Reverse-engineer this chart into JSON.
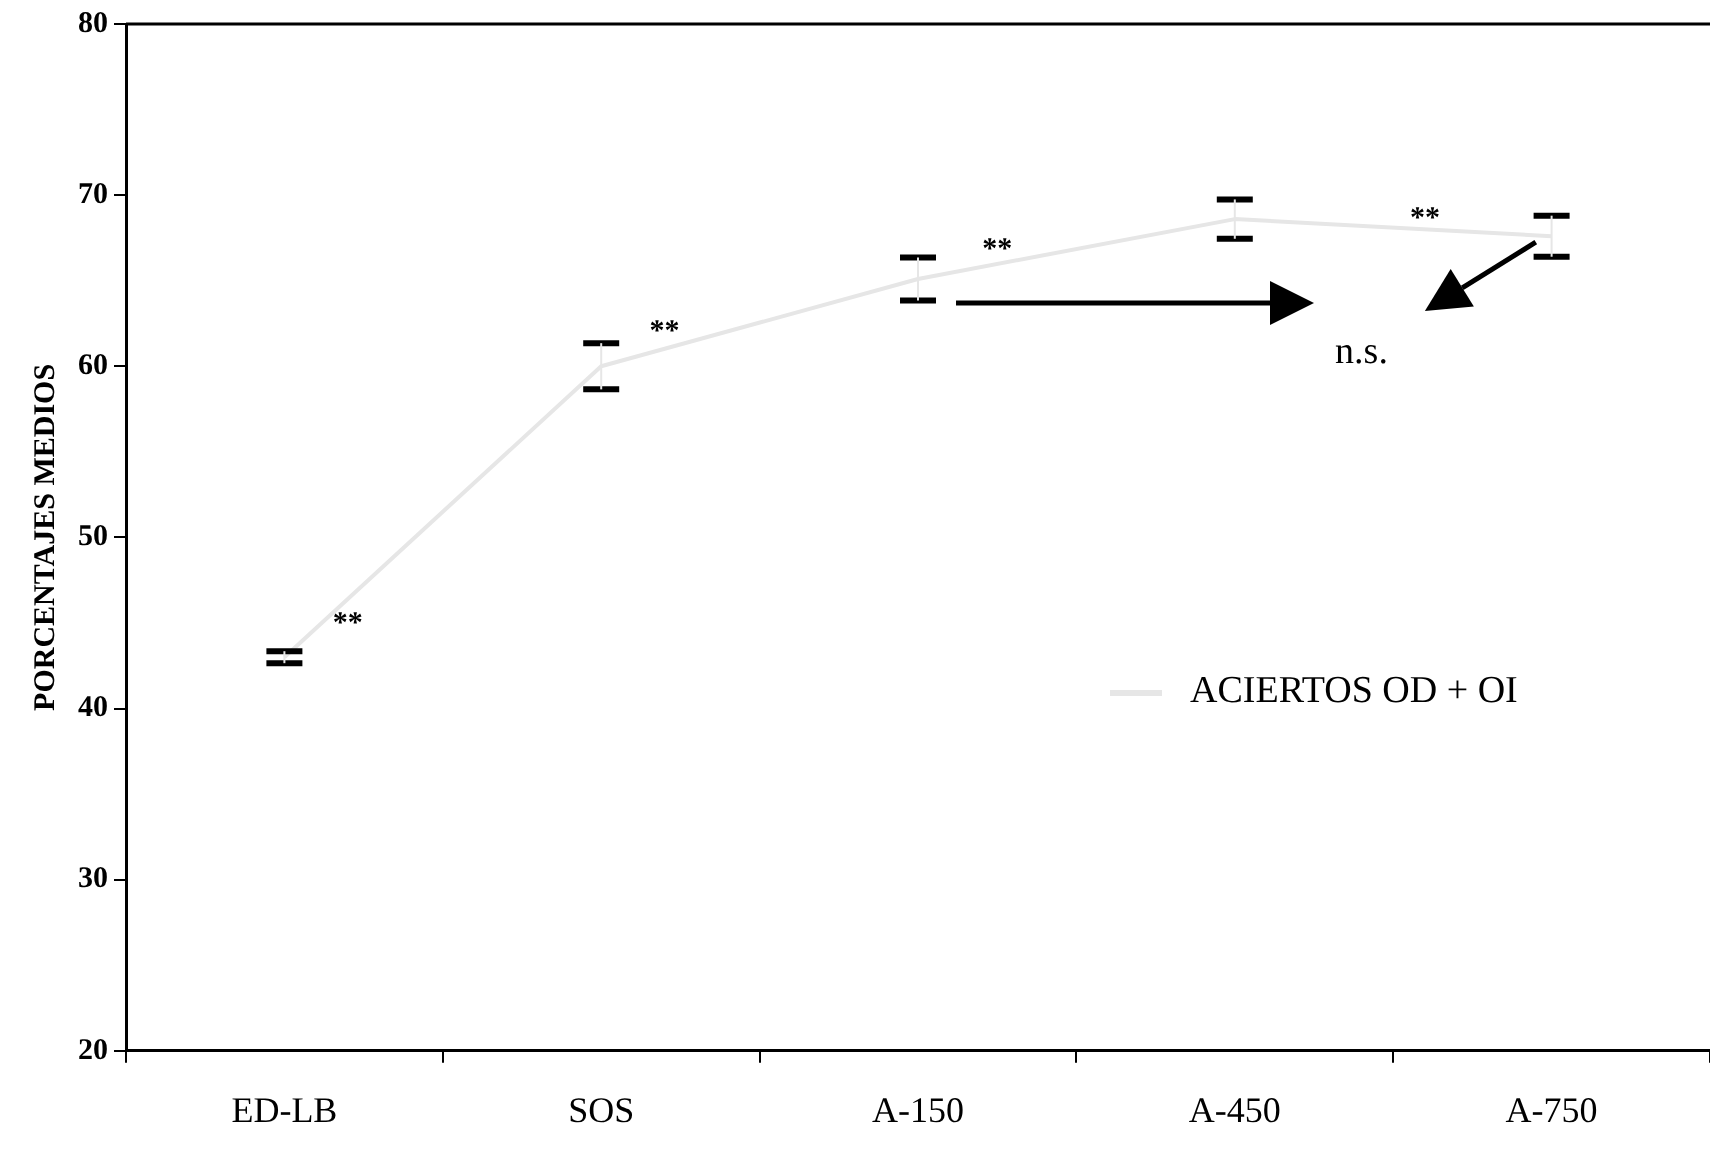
{
  "chart_data": {
    "type": "line",
    "ylabel": "PORCENTAJES MEDIOS",
    "categories": [
      "ED-LB",
      "SOS",
      "A-150",
      "A-450",
      "A-750"
    ],
    "series": [
      {
        "name": "ACIERTOS OD + OI",
        "color": "#e6e6e6",
        "values": [
          43.0,
          60.0,
          65.1,
          68.6,
          67.6
        ],
        "errors": [
          0.35,
          1.35,
          1.25,
          1.15,
          1.2
        ]
      }
    ],
    "ylim": [
      20,
      80
    ],
    "yticks": [
      20,
      30,
      40,
      50,
      60,
      70,
      80
    ],
    "grid": false,
    "legend": "bottom right",
    "marker": "none",
    "line_style": "solid",
    "annotations": [
      "**",
      "**",
      "**",
      "**",
      "n.s."
    ]
  }
}
